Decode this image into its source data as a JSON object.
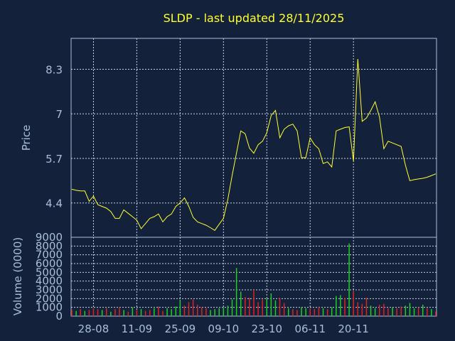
{
  "colors": {
    "background": "#13213a",
    "frame": "#a9bfdc",
    "grid": "#c8d3e3",
    "price_line": "#ffff33",
    "title_text": "#ffff33",
    "label_text": "#a9bfdc",
    "volume_up": "#22cc22",
    "volume_down": "#dd2222"
  },
  "chart_data": {
    "type": "line",
    "title": "SLDP - last updated 28/11/2025",
    "grid": true,
    "x_tick_labels": [
      "28-08",
      "11-09",
      "25-09",
      "09-10",
      "23-10",
      "06-11",
      "20-11"
    ],
    "x_tick_index": [
      5,
      15,
      25,
      35,
      45,
      55,
      65
    ],
    "price_panel": {
      "ylabel": "Price",
      "ylim": [
        3.4,
        9.2
      ],
      "y_ticks": [
        "4.4",
        "5.7",
        "7",
        "8.3"
      ],
      "y_tick_values": [
        4.4,
        5.7,
        7.0,
        8.3
      ],
      "series": [
        {
          "values": [
            4.8,
            4.77,
            4.75,
            4.75,
            4.45,
            4.6,
            4.35,
            4.3,
            4.25,
            4.15,
            3.95,
            3.95,
            4.2,
            4.1,
            4.0,
            3.9,
            3.65,
            3.8,
            3.95,
            4.0,
            4.08,
            3.85,
            4.0,
            4.08,
            4.3,
            4.4,
            4.55,
            4.3,
            3.98,
            3.85,
            3.8,
            3.75,
            3.68,
            3.6,
            3.78,
            3.95,
            4.5,
            5.2,
            5.85,
            6.5,
            6.42,
            6.0,
            5.85,
            6.1,
            6.2,
            6.45,
            6.95,
            7.1,
            6.3,
            6.55,
            6.65,
            6.7,
            6.5,
            5.72,
            5.72,
            6.3,
            6.1,
            5.98,
            5.55,
            5.6,
            5.45,
            6.5,
            6.55,
            6.6,
            6.62,
            5.62,
            8.6,
            6.78,
            6.88,
            7.1,
            7.35,
            6.9,
            5.98,
            6.2,
            6.15,
            6.1,
            6.05,
            5.5,
            5.05,
            5.08,
            5.1,
            5.12,
            5.15,
            5.2,
            5.25
          ]
        }
      ]
    },
    "volume_panel": {
      "ylabel": "Volume (0000)",
      "ylim": [
        0,
        9000
      ],
      "y_ticks": [
        "0",
        "1000",
        "2000",
        "3000",
        "4000",
        "5000",
        "6000",
        "7000",
        "8000",
        "9000"
      ],
      "y_tick_values": [
        0,
        1000,
        2000,
        3000,
        4000,
        5000,
        6000,
        7000,
        8000,
        9000
      ],
      "values": [
        700,
        600,
        800,
        600,
        700,
        900,
        800,
        700,
        900,
        500,
        800,
        1000,
        700,
        500,
        1000,
        700,
        800,
        600,
        700,
        900,
        1100,
        600,
        900,
        800,
        1100,
        1800,
        1200,
        1600,
        1900,
        1300,
        1000,
        900,
        700,
        800,
        900,
        1000,
        1200,
        1900,
        5500,
        2800,
        2200,
        2100,
        3000,
        1600,
        1900,
        2000,
        2600,
        1800,
        2100,
        1500,
        900,
        800,
        700,
        1000,
        900,
        900,
        800,
        1100,
        900,
        800,
        1000,
        2300,
        2400,
        2100,
        8300,
        2800,
        1600,
        1400,
        2100,
        1200,
        900,
        1300,
        1400,
        900,
        1000,
        900,
        1100,
        1200,
        1500,
        900,
        1000,
        1300,
        900,
        800,
        500
      ],
      "direction": [
        "down",
        "up",
        "down",
        "up",
        "down",
        "down",
        "down",
        "up",
        "down",
        "up",
        "down",
        "down",
        "up",
        "down",
        "up",
        "down",
        "up",
        "down",
        "down",
        "up",
        "down",
        "down",
        "up",
        "up",
        "up",
        "up",
        "down",
        "down",
        "down",
        "down",
        "down",
        "down",
        "up",
        "up",
        "up",
        "up",
        "up",
        "up",
        "up",
        "up",
        "down",
        "down",
        "down",
        "down",
        "down",
        "up",
        "up",
        "up",
        "down",
        "down",
        "up",
        "down",
        "down",
        "up",
        "up",
        "down",
        "down",
        "down",
        "up",
        "down",
        "up",
        "up",
        "up",
        "down",
        "up",
        "down",
        "down",
        "down",
        "down",
        "up",
        "up",
        "down",
        "down",
        "down",
        "up",
        "down",
        "down",
        "up",
        "up",
        "up",
        "down",
        "up",
        "down",
        "up",
        "down"
      ]
    }
  }
}
